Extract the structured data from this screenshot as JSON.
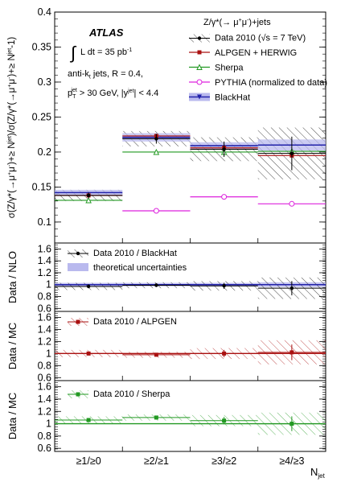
{
  "chart_data": {
    "type": "ratio-panel-plot",
    "categories": [
      "≥1/≥0",
      "≥2/≥1",
      "≥3/≥2",
      "≥4/≥3"
    ],
    "xlabel_main": "N",
    "xlabel_sub": "jet",
    "atlas": {
      "title": "ATLAS",
      "lumi": [
        "∫",
        "L dt = 35 pb",
        "-1"
      ],
      "jets": [
        "anti-k",
        "t",
        " jets,  R = 0.4,"
      ],
      "cuts": [
        "p",
        "T",
        "jet",
        " > 30 GeV, |y",
        "jet",
        "| < 4.4"
      ]
    },
    "colors": {
      "data": "#000000",
      "alpgen": "#aa1111",
      "sherpa": "#229922",
      "pythia": "#dd22dd",
      "blackhat": "#2222aa",
      "blackhat_band": "#b9b9ee"
    },
    "panels": [
      {
        "id": "main",
        "ylabel": [
          "σ(Z/γ*(→μ",
          "+",
          "μ",
          "-",
          ")+≥ N",
          "jet",
          ")/σ(Z/γ*(→μ",
          "+",
          "μ",
          "-",
          ")+≥ N",
          "jet",
          "-1)"
        ],
        "ylim": [
          0.07,
          0.4
        ],
        "ticks": [
          "0.1",
          "0.15",
          "0.2",
          "0.25",
          "0.3",
          "0.35",
          "0.4"
        ],
        "tick_values": [
          0.1,
          0.15,
          0.2,
          0.25,
          0.3,
          0.35,
          0.4
        ],
        "legend_header": [
          "Z/γ*(→ μ",
          "+",
          "μ",
          "-",
          ")+jets"
        ],
        "legend": [
          {
            "key": "data",
            "label": [
              "Data 2010 (",
              "√s",
              " = 7 TeV)"
            ]
          },
          {
            "key": "alpgen",
            "label": [
              "ALPGEN + HERWIG"
            ]
          },
          {
            "key": "sherpa",
            "label": [
              "Sherpa"
            ]
          },
          {
            "key": "pythia",
            "label": [
              "PYTHIA (normalized to data)"
            ]
          },
          {
            "key": "blackhat",
            "label": [
              "BlackHat"
            ]
          }
        ],
        "data": {
          "values": [
            0.138,
            0.219,
            0.204,
            0.198
          ],
          "stat_err": [
            0.004,
            0.007,
            0.011,
            0.024
          ],
          "syst_band": [
            0.008,
            0.011,
            0.017,
            0.037
          ]
        },
        "alpgen": [
          0.138,
          0.223,
          0.206,
          0.195
        ],
        "sherpa": [
          0.131,
          0.2,
          0.2,
          0.201
        ],
        "pythia": [
          null,
          0.116,
          0.136,
          0.126
        ],
        "blackhat": {
          "values": [
            0.142,
            0.221,
            0.209,
            0.21
          ],
          "band": [
            0.004,
            0.006,
            0.005,
            0.008
          ]
        }
      },
      {
        "id": "nlo",
        "ylabel": [
          "Data / NLO"
        ],
        "ylim": [
          0.55,
          1.7
        ],
        "ticks": [
          "0.6",
          "0.8",
          "1",
          "1.2",
          "1.4",
          "1.6"
        ],
        "tick_values": [
          0.6,
          0.8,
          1.0,
          1.2,
          1.4,
          1.6
        ],
        "legend": [
          [
            "Data 2010 / BlackHat"
          ],
          [
            "theoretical uncertainties"
          ]
        ],
        "ratio": [
          0.97,
          0.99,
          0.98,
          0.94
        ],
        "stat_err": [
          0.03,
          0.03,
          0.05,
          0.12
        ],
        "syst_band": [
          0.06,
          0.05,
          0.08,
          0.18
        ],
        "theory_band": [
          0.03,
          0.03,
          0.03,
          0.04
        ]
      },
      {
        "id": "mc_alpgen",
        "ylabel": [
          "Data / MC"
        ],
        "ylim": [
          0.55,
          1.7
        ],
        "ticks": [
          "0.6",
          "0.8",
          "1",
          "1.2",
          "1.4",
          "1.6"
        ],
        "tick_values": [
          0.6,
          0.8,
          1.0,
          1.2,
          1.4,
          1.6
        ],
        "legend": [
          [
            "Data 2010 / ALPGEN"
          ]
        ],
        "ratio": [
          1.0,
          0.98,
          1.0,
          1.02
        ],
        "stat_err": [
          0.03,
          0.03,
          0.06,
          0.13
        ],
        "syst_band": [
          0.06,
          0.05,
          0.09,
          0.2
        ]
      },
      {
        "id": "mc_sherpa",
        "ylabel": [
          "Data / MC"
        ],
        "ylim": [
          0.55,
          1.7
        ],
        "ticks": [
          "0.6",
          "0.8",
          "1",
          "1.2",
          "1.4",
          "1.6"
        ],
        "tick_values": [
          0.6,
          0.8,
          1.0,
          1.2,
          1.4,
          1.6
        ],
        "legend": [
          [
            "Data 2010 / Sherpa"
          ]
        ],
        "ratio": [
          1.06,
          1.1,
          1.05,
          1.0
        ],
        "stat_err": [
          0.03,
          0.03,
          0.06,
          0.12
        ],
        "syst_band": [
          0.06,
          0.05,
          0.09,
          0.18
        ]
      }
    ]
  }
}
